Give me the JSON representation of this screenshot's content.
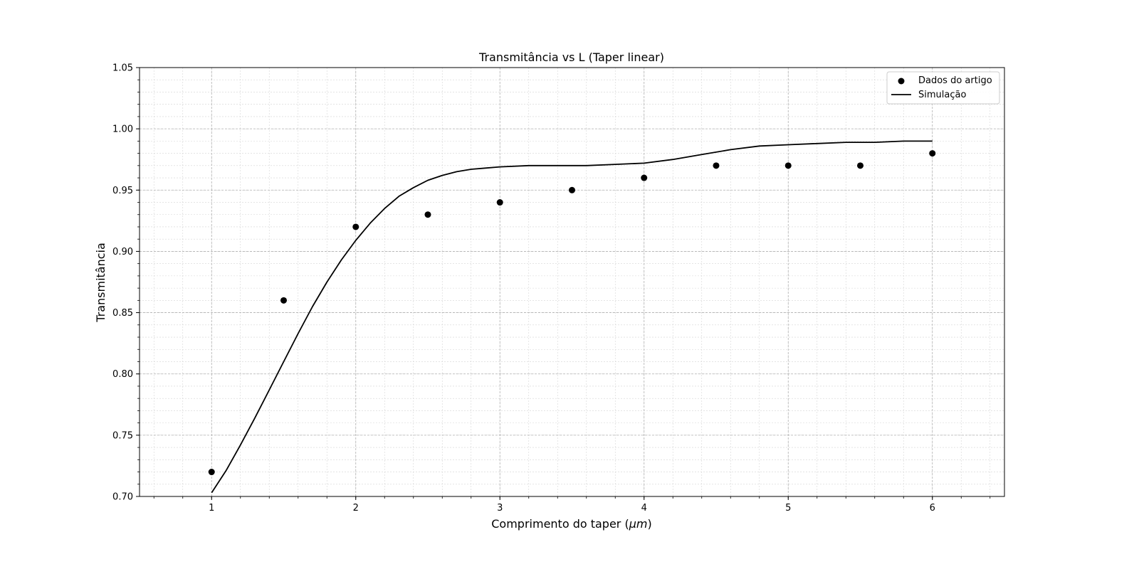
{
  "chart_data": {
    "type": "scatter",
    "title": "Transmitância vs L (Taper linear)",
    "xlabel": "Comprimento do taper",
    "xlabel_unit": "μm",
    "ylabel": "Transmitância",
    "xlim": [
      0.5,
      6.5
    ],
    "ylim": [
      0.7,
      1.05
    ],
    "x_ticks": [
      1,
      2,
      3,
      4,
      5,
      6
    ],
    "x_tick_labels": [
      "1",
      "2",
      "3",
      "4",
      "5",
      "6"
    ],
    "y_ticks": [
      0.7,
      0.75,
      0.8,
      0.85,
      0.9,
      0.95,
      1.0,
      1.05
    ],
    "y_tick_labels": [
      "0.70",
      "0.75",
      "0.80",
      "0.85",
      "0.90",
      "0.95",
      "1.00",
      "1.05"
    ],
    "x_minor_step": 0.2,
    "y_minor_step": 0.01,
    "grid": true,
    "legend_position": "top-right",
    "series": [
      {
        "name": "Dados do artigo",
        "kind": "scatter",
        "color": "#000000",
        "x": [
          1.0,
          1.5,
          2.0,
          2.5,
          3.0,
          3.5,
          4.0,
          4.5,
          5.0,
          5.5,
          6.0
        ],
        "y": [
          0.72,
          0.86,
          0.92,
          0.93,
          0.94,
          0.95,
          0.96,
          0.97,
          0.97,
          0.97,
          0.98
        ]
      },
      {
        "name": "Simulação",
        "kind": "line",
        "color": "#000000",
        "x": [
          1.0,
          1.1,
          1.2,
          1.3,
          1.4,
          1.5,
          1.6,
          1.7,
          1.8,
          1.9,
          2.0,
          2.1,
          2.2,
          2.3,
          2.4,
          2.5,
          2.6,
          2.7,
          2.8,
          2.9,
          3.0,
          3.2,
          3.4,
          3.6,
          3.8,
          4.0,
          4.2,
          4.4,
          4.6,
          4.8,
          5.0,
          5.2,
          5.4,
          5.6,
          5.8,
          6.0
        ],
        "y": [
          0.703,
          0.721,
          0.742,
          0.764,
          0.787,
          0.81,
          0.833,
          0.855,
          0.875,
          0.893,
          0.909,
          0.923,
          0.935,
          0.945,
          0.952,
          0.958,
          0.962,
          0.965,
          0.967,
          0.968,
          0.969,
          0.97,
          0.97,
          0.97,
          0.971,
          0.972,
          0.975,
          0.979,
          0.983,
          0.986,
          0.987,
          0.988,
          0.989,
          0.989,
          0.99,
          0.99
        ]
      }
    ]
  }
}
